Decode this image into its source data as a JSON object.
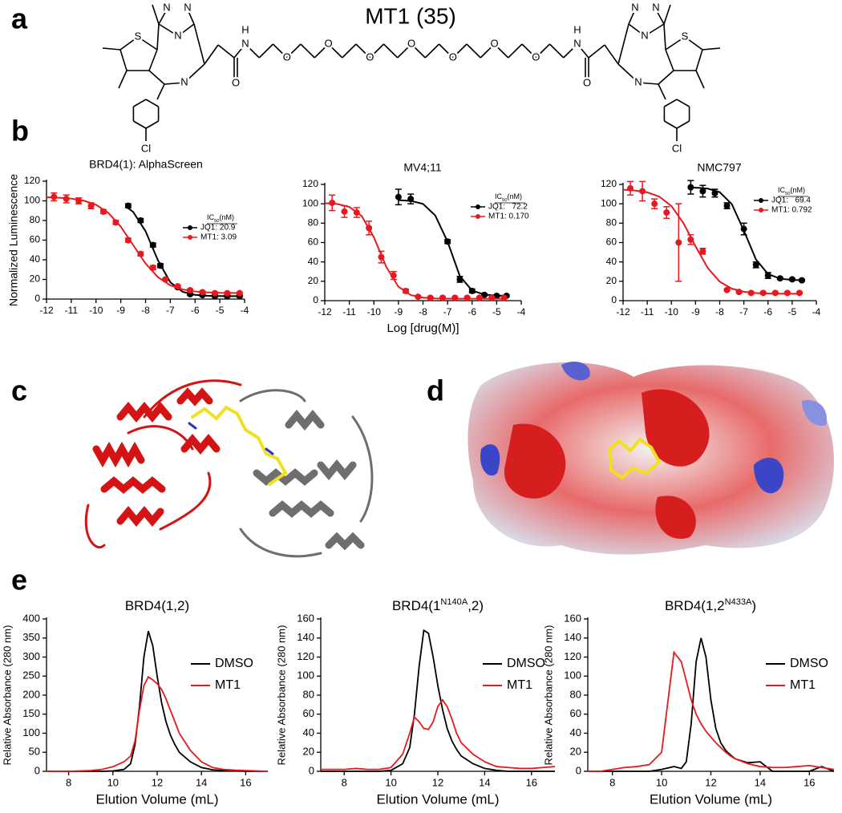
{
  "panels": [
    "a",
    "b",
    "c",
    "d",
    "e"
  ],
  "molecule": {
    "title": "MT1 (35)",
    "atoms": [
      "N",
      "N",
      "N",
      "S",
      "N",
      "O",
      "H",
      "N",
      "O",
      "O",
      "O",
      "O",
      "O",
      "O",
      "O",
      "H",
      "N",
      "O",
      "N",
      "S",
      "N",
      "N",
      "N",
      "Cl",
      "Cl"
    ]
  },
  "chart_data": [
    {
      "type": "scatter",
      "title": "BRD4(1): AlphaScreen",
      "ylabel": "Normalized Luminescence",
      "xlim": [
        -12,
        -4
      ],
      "xticks": [
        -12,
        -11,
        -10,
        -9,
        -8,
        -7,
        -6,
        -5,
        -4
      ],
      "ylim": [
        0,
        120
      ],
      "yticks": [
        0,
        20,
        40,
        60,
        80,
        100,
        120
      ],
      "legend_title": [
        "IC",
        "50",
        "(nM)"
      ],
      "series": [
        {
          "name": "JQ1: 20.9",
          "color": "#000000",
          "x": [
            -8.7,
            -8.2,
            -7.7,
            -7.4,
            -6.7,
            -6.2,
            -5.7,
            -5.2,
            -4.7,
            -4.2
          ],
          "values": [
            95,
            80,
            55,
            34,
            12,
            5,
            4,
            3,
            3,
            3
          ],
          "errors": [
            2,
            2,
            2,
            2,
            1,
            1,
            1,
            1,
            1,
            1
          ],
          "fit": {
            "x": [
              -8.8,
              -8.5,
              -8,
              -7.5,
              -7,
              -6.5,
              -6,
              -5.5,
              -5,
              -4.5,
              -4.3
            ],
            "values": [
              94.4,
              88.7,
              69.1,
              39.5,
              17.1,
              7.4,
              4.3,
              3.4,
              3.1,
              3.0,
              3.0
            ]
          }
        },
        {
          "name": "MT1: 3.09",
          "color": "#e8191e",
          "x": [
            -11.7,
            -11.2,
            -10.7,
            -10.2,
            -9.7,
            -9.2,
            -8.7,
            -8.2,
            -7.7,
            -7.2,
            -6.7,
            -6.2,
            -5.7,
            -5.2,
            -4.7,
            -4.2
          ],
          "values": [
            104,
            102,
            100,
            95,
            89,
            78,
            60,
            46,
            32,
            20,
            13,
            9,
            7,
            6,
            6,
            6
          ],
          "errors": [
            4,
            4,
            3,
            3,
            2,
            2,
            2,
            2,
            2,
            1,
            1,
            1,
            1,
            1,
            1,
            1
          ],
          "fit": {
            "x": [
              -12,
              -11.5,
              -11,
              -10.5,
              -10,
              -9.5,
              -9,
              -8.5,
              -8,
              -7.5,
              -7,
              -6.5,
              -6,
              -5.5,
              -5,
              -4.5,
              -4.3
            ],
            "values": [
              103.7,
              103.2,
              102.3,
              100.2,
              96.0,
              87.7,
              73.7,
              55,
              36.2,
              22.3,
              14.0,
              9.8,
              7.7,
              6.8,
              6.3,
              6.2,
              6.1
            ]
          }
        }
      ]
    },
    {
      "type": "scatter",
      "title": "MV4;11",
      "xlabel": "Log [drug(M)]",
      "xlim": [
        -12,
        -4
      ],
      "xticks": [
        -12,
        -11,
        -10,
        -9,
        -8,
        -7,
        -6,
        -5,
        -4
      ],
      "ylim": [
        0,
        120
      ],
      "yticks": [
        0,
        20,
        40,
        60,
        80,
        100,
        120
      ],
      "legend_title": [
        "IC",
        "50",
        "(nM)"
      ],
      "series": [
        {
          "name": "JQ1:   72.2",
          "color": "#000000",
          "x": [
            -9,
            -8.5,
            -7,
            -6.5,
            -6,
            -5.5,
            -5,
            -4.6
          ],
          "values": [
            107,
            105,
            61,
            22,
            10,
            6,
            5,
            5
          ],
          "errors": [
            8,
            5,
            2,
            3,
            2,
            1,
            1,
            1
          ],
          "fit": {
            "x": [
              -9,
              -8.5,
              -8,
              -7.5,
              -7,
              -6.5,
              -6,
              -5.5,
              -5,
              -4.6
            ],
            "values": [
              103.8,
              103,
              99.9,
              87.9,
              60.9,
              25.4,
              10.4,
              6.3,
              5.3,
              5.1
            ]
          }
        },
        {
          "name": "MT1: 0.170",
          "color": "#e8191e",
          "x": [
            -11.7,
            -11.2,
            -10.7,
            -10.2,
            -9.7,
            -9.2,
            -8.7,
            -8.2,
            -7.7,
            -7.2,
            -6.7,
            -6.2,
            -5.7,
            -5.2,
            -4.7
          ],
          "values": [
            101,
            92,
            91,
            75,
            45,
            26,
            10,
            4,
            3,
            3,
            3,
            3,
            3,
            3,
            3
          ],
          "errors": [
            8,
            6,
            5,
            7,
            6,
            4,
            2,
            1,
            1,
            1,
            1,
            1,
            1,
            1,
            1
          ],
          "fit": {
            "x": [
              -12,
              -11.5,
              -11,
              -10.5,
              -10,
              -9.5,
              -9,
              -8.5,
              -8,
              -7.5,
              -7,
              -6.5,
              -6,
              -5.5,
              -5,
              -4.7
            ],
            "values": [
              100.7,
              99.8,
              96.8,
              87.5,
              65.4,
              35.1,
              14.3,
              5.8,
              3.1,
              2.3,
              2.1,
              2,
              2,
              2,
              2,
              2
            ]
          }
        }
      ]
    },
    {
      "type": "scatter",
      "title": "NMC797",
      "xlim": [
        -12,
        -4
      ],
      "xticks": [
        -12,
        -11,
        -10,
        -9,
        -8,
        -7,
        -6,
        -5,
        -4
      ],
      "ylim": [
        0,
        120
      ],
      "yticks": [
        0,
        20,
        40,
        60,
        80,
        100,
        120
      ],
      "legend_title": [
        "IC",
        "50",
        "(nM)"
      ],
      "series": [
        {
          "name": "JQ1:   69.4",
          "color": "#000000",
          "x": [
            -9.2,
            -8.7,
            -8.2,
            -7.7,
            -7.0,
            -6.5,
            -6.0,
            -5.5,
            -5.0,
            -4.6
          ],
          "values": [
            117,
            113,
            111,
            98,
            74,
            37,
            26,
            23,
            22,
            21
          ],
          "errors": [
            7,
            6,
            4,
            3,
            6,
            3,
            3,
            1,
            1,
            1
          ],
          "fit": {
            "x": [
              -9.3,
              -8.8,
              -8.5,
              -8,
              -7.5,
              -7,
              -6.5,
              -6,
              -5.5,
              -5,
              -4.6
            ],
            "values": [
              116.9,
              116.4,
              115.7,
              112.0,
              99.7,
              72.3,
              42.5,
              27.5,
              22.7,
              21.4,
              21.1
            ]
          }
        },
        {
          "name": "MT1: 0.792",
          "color": "#e8191e",
          "x": [
            -11.7,
            -11.2,
            -10.7,
            -10.2,
            -9.7,
            -9.2,
            -8.7,
            -7.7,
            -7.2,
            -6.7,
            -6.2,
            -5.7,
            -5.2,
            -4.7
          ],
          "values": [
            116,
            113,
            100,
            91,
            60,
            63,
            51,
            11,
            9,
            8,
            8,
            8,
            8,
            8
          ],
          "errors": [
            7,
            10,
            5,
            6,
            40,
            5,
            3,
            1,
            1,
            1,
            1,
            1,
            1,
            1
          ],
          "fit": {
            "x": [
              -12,
              -11.5,
              -11,
              -10.5,
              -10,
              -9.5,
              -9,
              -8.5,
              -8,
              -7.5,
              -7,
              -6.5,
              -6,
              -5.5,
              -5,
              -4.6
            ],
            "values": [
              114.5,
              113.7,
              111.8,
              107.4,
              97.7,
              80.0,
              56.1,
              33.9,
              19.6,
              12.4,
              9.2,
              7.9,
              7.4,
              7.2,
              7.1,
              7.0
            ]
          }
        }
      ]
    },
    {
      "type": "line",
      "title": [
        "BRD4(1,2)"
      ],
      "ylabel": "Relative Absorbance (280 nm)",
      "xlabel": "Elution Volume (mL)",
      "xlim": [
        7,
        17
      ],
      "xticks": [
        8,
        10,
        12,
        14,
        16
      ],
      "ylim": [
        0,
        400
      ],
      "yticks": [
        0,
        50,
        100,
        150,
        200,
        250,
        300,
        350,
        400
      ],
      "x": [
        7,
        7.5,
        8,
        8.5,
        9,
        9.5,
        10,
        10.5,
        10.8,
        11,
        11.2,
        11.4,
        11.6,
        11.8,
        12,
        12.2,
        12.4,
        12.6,
        12.8,
        13,
        13.5,
        14,
        14.5,
        15,
        15.5,
        16,
        16.5,
        17
      ],
      "series": [
        {
          "name": "DMSO",
          "color": "#000000",
          "values": [
            0,
            0,
            0,
            0,
            0,
            0,
            1,
            5,
            20,
            70,
            170,
            300,
            368,
            330,
            250,
            180,
            130,
            95,
            70,
            50,
            25,
            10,
            4,
            2,
            1,
            0,
            0,
            0
          ]
        },
        {
          "name": "MT1",
          "color": "#e8191e",
          "values": [
            0,
            0,
            0,
            1,
            2,
            5,
            12,
            25,
            40,
            80,
            160,
            225,
            248,
            240,
            230,
            215,
            190,
            160,
            130,
            100,
            55,
            25,
            10,
            5,
            3,
            2,
            1,
            0
          ]
        }
      ]
    },
    {
      "type": "line",
      "title": [
        "BRD4(1",
        "N140A",
        ",2)"
      ],
      "superscript": [
        1
      ],
      "ylabel": "Relative Absorbance (280 nm)",
      "xlabel": "Elution Volume (mL)",
      "xlim": [
        7,
        17
      ],
      "xticks": [
        8,
        10,
        12,
        14,
        16
      ],
      "ylim": [
        0,
        160
      ],
      "yticks": [
        0,
        20,
        40,
        60,
        80,
        100,
        120,
        140,
        160
      ],
      "x": [
        7,
        7.5,
        8,
        8.5,
        9,
        9.5,
        10,
        10.5,
        10.8,
        11,
        11.2,
        11.4,
        11.6,
        11.8,
        12,
        12.2,
        12.4,
        12.6,
        12.8,
        13,
        13.5,
        14,
        14.5,
        15,
        15.5,
        16,
        16.5,
        17
      ],
      "series": [
        {
          "name": "DMSO",
          "color": "#000000",
          "values": [
            0,
            0,
            0,
            0,
            0,
            0,
            1,
            8,
            25,
            60,
            110,
            148,
            145,
            120,
            90,
            65,
            45,
            32,
            23,
            16,
            8,
            3,
            1,
            0,
            0,
            0,
            0,
            0
          ]
        },
        {
          "name": "MT1",
          "color": "#e8191e",
          "values": [
            2,
            2,
            2,
            3,
            2,
            2,
            4,
            18,
            40,
            57,
            52,
            45,
            44,
            52,
            68,
            75,
            68,
            55,
            40,
            30,
            18,
            10,
            5,
            4,
            3,
            3,
            4,
            5
          ]
        }
      ]
    },
    {
      "type": "line",
      "title": [
        "BRD4(1,2",
        "N433A",
        ")"
      ],
      "superscript": [
        1
      ],
      "ylabel": "Relative Absorbance (280 nm)",
      "xlabel": "Elution Volume (mL)",
      "xlim": [
        7,
        17
      ],
      "xticks": [
        8,
        10,
        12,
        14,
        16
      ],
      "ylim": [
        0,
        160
      ],
      "yticks": [
        0,
        20,
        40,
        60,
        80,
        100,
        120,
        140,
        160
      ],
      "x": [
        7,
        7.5,
        8,
        8.5,
        9,
        9.5,
        10,
        10.5,
        10.8,
        11,
        11.2,
        11.4,
        11.6,
        11.8,
        12,
        12.2,
        12.4,
        12.6,
        12.8,
        13,
        13.5,
        14,
        14.5,
        15,
        15.5,
        16,
        16.5,
        17
      ],
      "series": [
        {
          "name": "DMSO",
          "color": "#000000",
          "values": [
            0,
            0,
            0,
            0,
            0,
            0,
            2,
            5,
            3,
            10,
            50,
            115,
            140,
            120,
            75,
            45,
            30,
            22,
            17,
            13,
            9,
            10,
            0,
            0,
            0,
            0,
            5,
            0
          ]
        },
        {
          "name": "MT1",
          "color": "#e8191e",
          "values": [
            0,
            0,
            2,
            4,
            5,
            7,
            20,
            125,
            115,
            95,
            75,
            60,
            50,
            42,
            36,
            30,
            25,
            20,
            16,
            13,
            8,
            5,
            4,
            4,
            5,
            6,
            4,
            2
          ]
        }
      ]
    }
  ]
}
